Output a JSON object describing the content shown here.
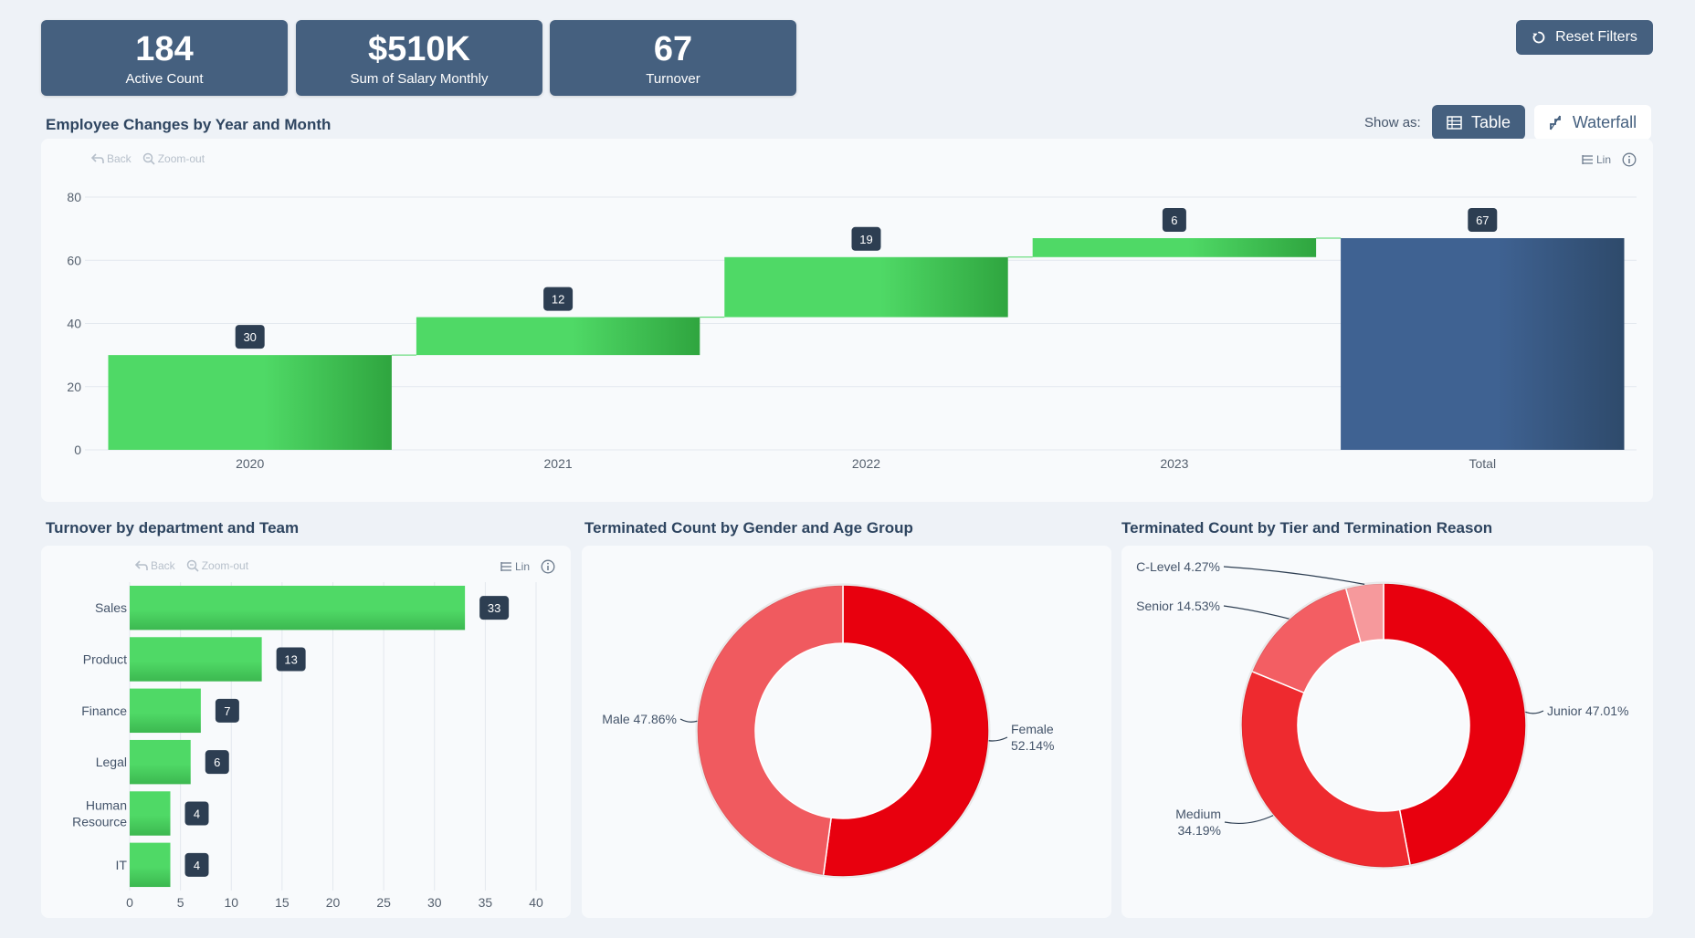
{
  "kpis": [
    {
      "value": "184",
      "label": "Active Count"
    },
    {
      "value": "$510K",
      "label": "Sum of Salary Monthly"
    },
    {
      "value": "67",
      "label": "Turnover"
    }
  ],
  "reset_label": "Reset Filters",
  "toolbar": {
    "back": "Back",
    "zoom_out": "Zoom-out",
    "lin": "Lin"
  },
  "waterfall_section": {
    "title": "Employee Changes by Year and Month",
    "show_as": "Show as:",
    "table_label": "Table",
    "waterfall_label": "Waterfall"
  },
  "dept_section": {
    "title": "Turnover by department and Team"
  },
  "gender_section": {
    "title": "Terminated Count by Gender and Age Group"
  },
  "tier_section": {
    "title": "Terminated Count by Tier and Termination Reason"
  },
  "colors": {
    "accent": "#45607f",
    "green": "#4cd664",
    "red": "#e8000e",
    "total": "#3c5a80"
  },
  "chart_data": [
    {
      "type": "bar",
      "subtype": "waterfall",
      "categories": [
        "2020",
        "2021",
        "2022",
        "2023",
        "Total"
      ],
      "values": [
        30,
        12,
        19,
        6,
        67
      ],
      "ylim": [
        0,
        80
      ],
      "yticks": [
        0,
        20,
        40,
        60,
        80
      ],
      "grid": true
    },
    {
      "type": "bar",
      "orientation": "horizontal",
      "categories": [
        "Sales",
        "Product",
        "Finance",
        "Legal",
        "Human Resource",
        "IT"
      ],
      "values": [
        33,
        13,
        7,
        6,
        4,
        4
      ],
      "xlim": [
        0,
        40
      ],
      "xticks": [
        0,
        5,
        10,
        15,
        20,
        25,
        30,
        35,
        40
      ],
      "grid": true
    },
    {
      "type": "pie",
      "donut": true,
      "slices": [
        {
          "label": "Female",
          "pct": "52.14%",
          "value": 52.14,
          "color": "#e8000e"
        },
        {
          "label": "Male",
          "pct": "47.86%",
          "value": 47.86,
          "color": "#f05a5f"
        }
      ]
    },
    {
      "type": "pie",
      "donut": true,
      "slices": [
        {
          "label": "Junior",
          "pct": "47.01%",
          "value": 47.01,
          "color": "#e8000e"
        },
        {
          "label": "Medium",
          "pct": "34.19%",
          "value": 34.19,
          "color": "#ee2a2f"
        },
        {
          "label": "Senior",
          "pct": "14.53%",
          "value": 14.53,
          "color": "#f35e63"
        },
        {
          "label": "C-Level",
          "pct": "4.27%",
          "value": 4.27,
          "color": "#f6999c"
        }
      ]
    }
  ]
}
